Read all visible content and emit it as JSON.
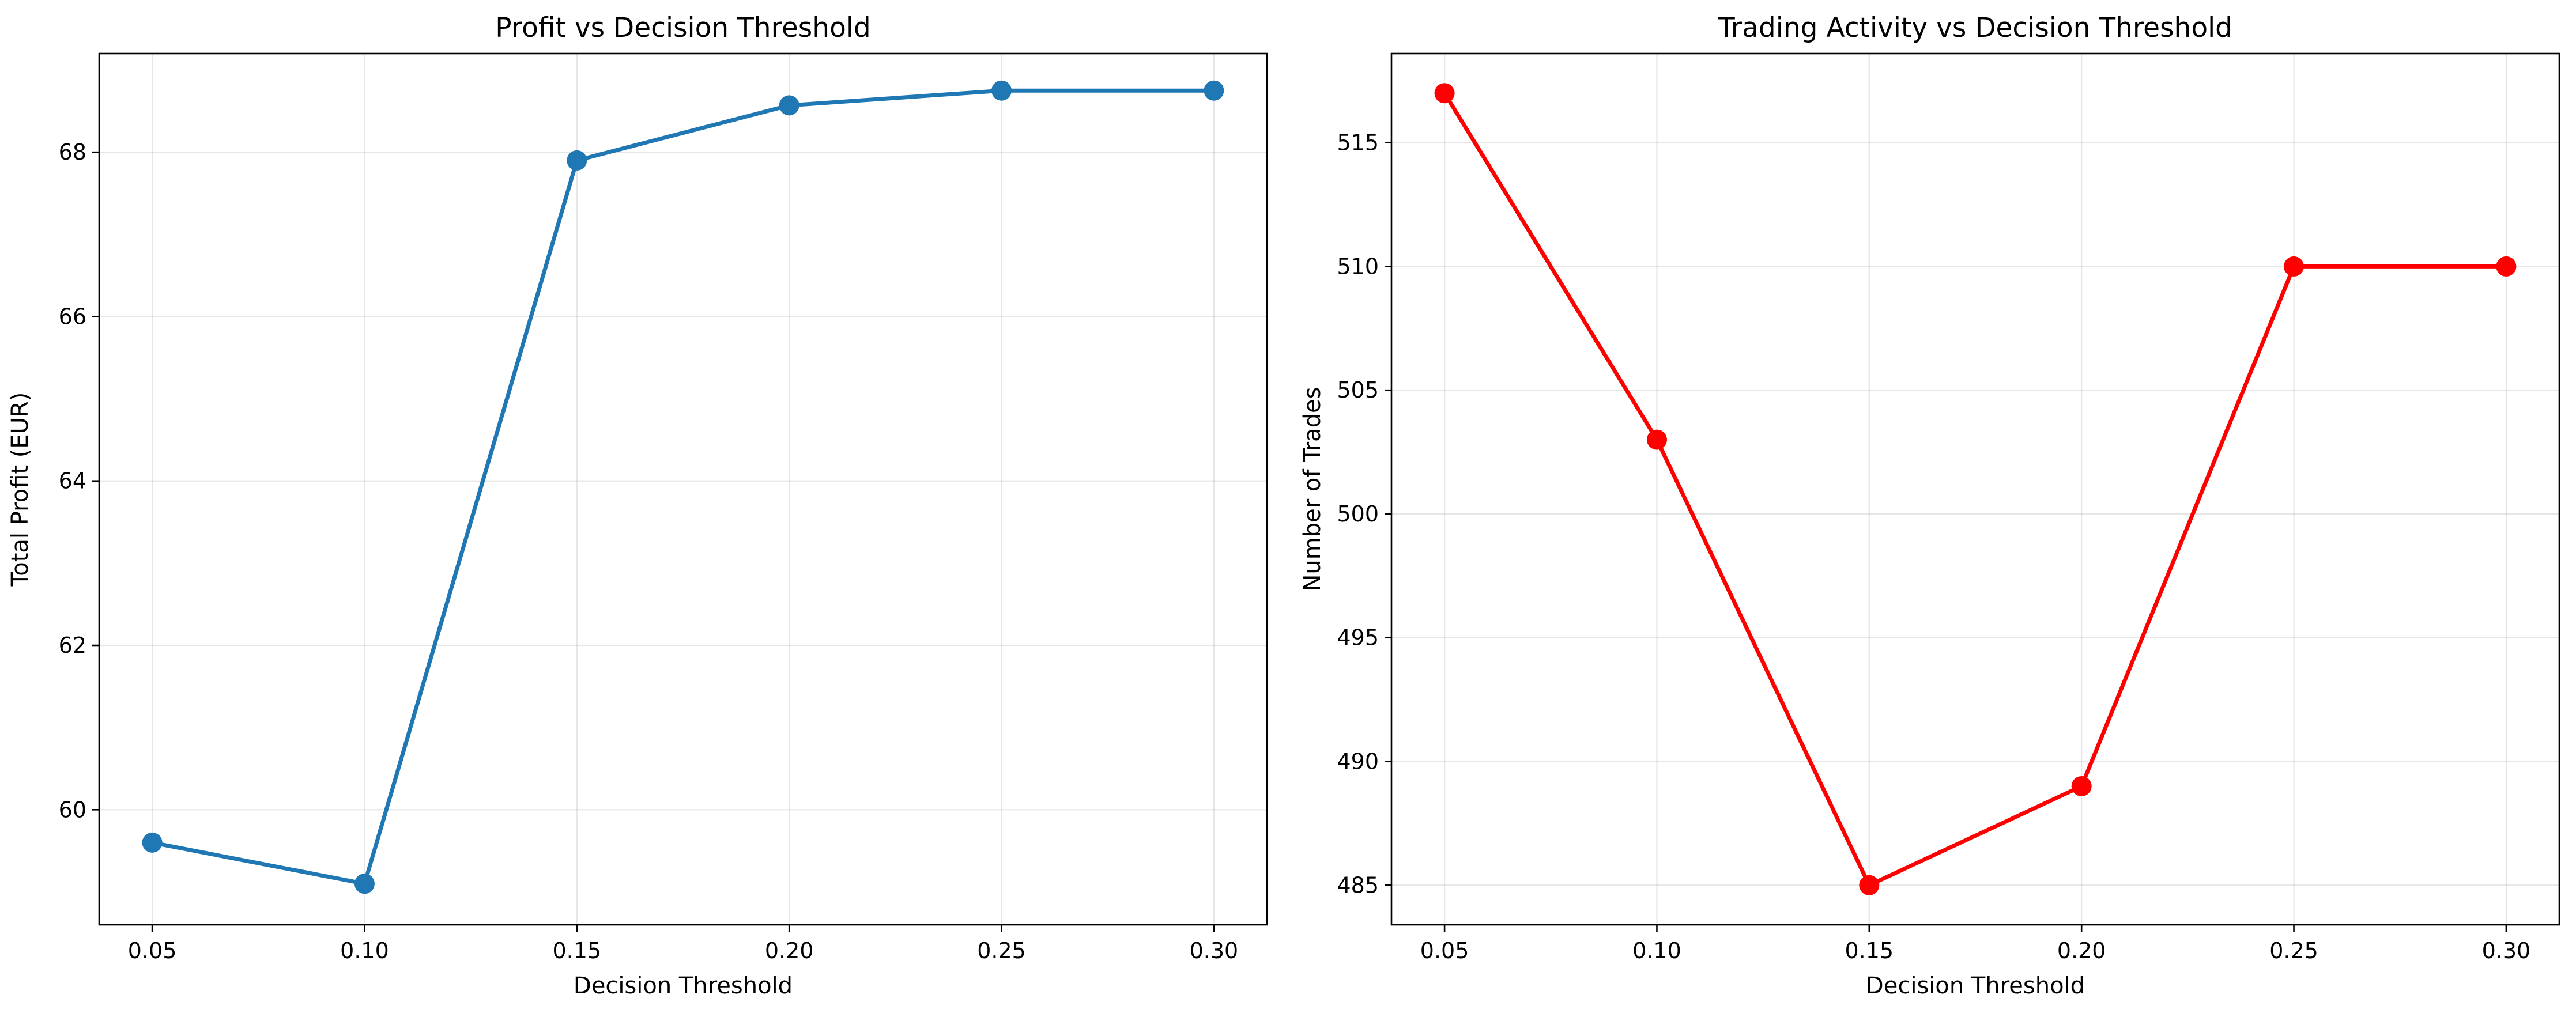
{
  "chart_data": [
    {
      "type": "line",
      "title": "Profit vs Decision Threshold",
      "xlabel": "Decision Threshold",
      "ylabel": "Total Profit (EUR)",
      "x": [
        0.05,
        0.1,
        0.15,
        0.2,
        0.25,
        0.3
      ],
      "xticks": [
        "0.05",
        "0.10",
        "0.15",
        "0.20",
        "0.25",
        "0.30"
      ],
      "xlim": [
        0.0375,
        0.3125
      ],
      "yticks": [
        "60",
        "62",
        "64",
        "66",
        "68"
      ],
      "ylim": [
        58.6,
        69.2
      ],
      "grid": true,
      "series": [
        {
          "values": [
            59.6,
            59.1,
            67.9,
            68.57,
            68.75,
            68.75
          ],
          "color": "#1f77b4",
          "marker": "circle"
        }
      ]
    },
    {
      "type": "line",
      "title": "Trading Activity vs Decision Threshold",
      "xlabel": "Decision Threshold",
      "ylabel": "Number of Trades",
      "x": [
        0.05,
        0.1,
        0.15,
        0.2,
        0.25,
        0.3
      ],
      "xticks": [
        "0.05",
        "0.10",
        "0.15",
        "0.20",
        "0.25",
        "0.30"
      ],
      "xlim": [
        0.0375,
        0.3125
      ],
      "yticks": [
        "485",
        "490",
        "495",
        "500",
        "505",
        "510",
        "515"
      ],
      "ylim": [
        483.4,
        518.6
      ],
      "grid": true,
      "series": [
        {
          "values": [
            517,
            503,
            485,
            489,
            510,
            510
          ],
          "color": "#ff0000",
          "marker": "circle"
        }
      ]
    }
  ]
}
